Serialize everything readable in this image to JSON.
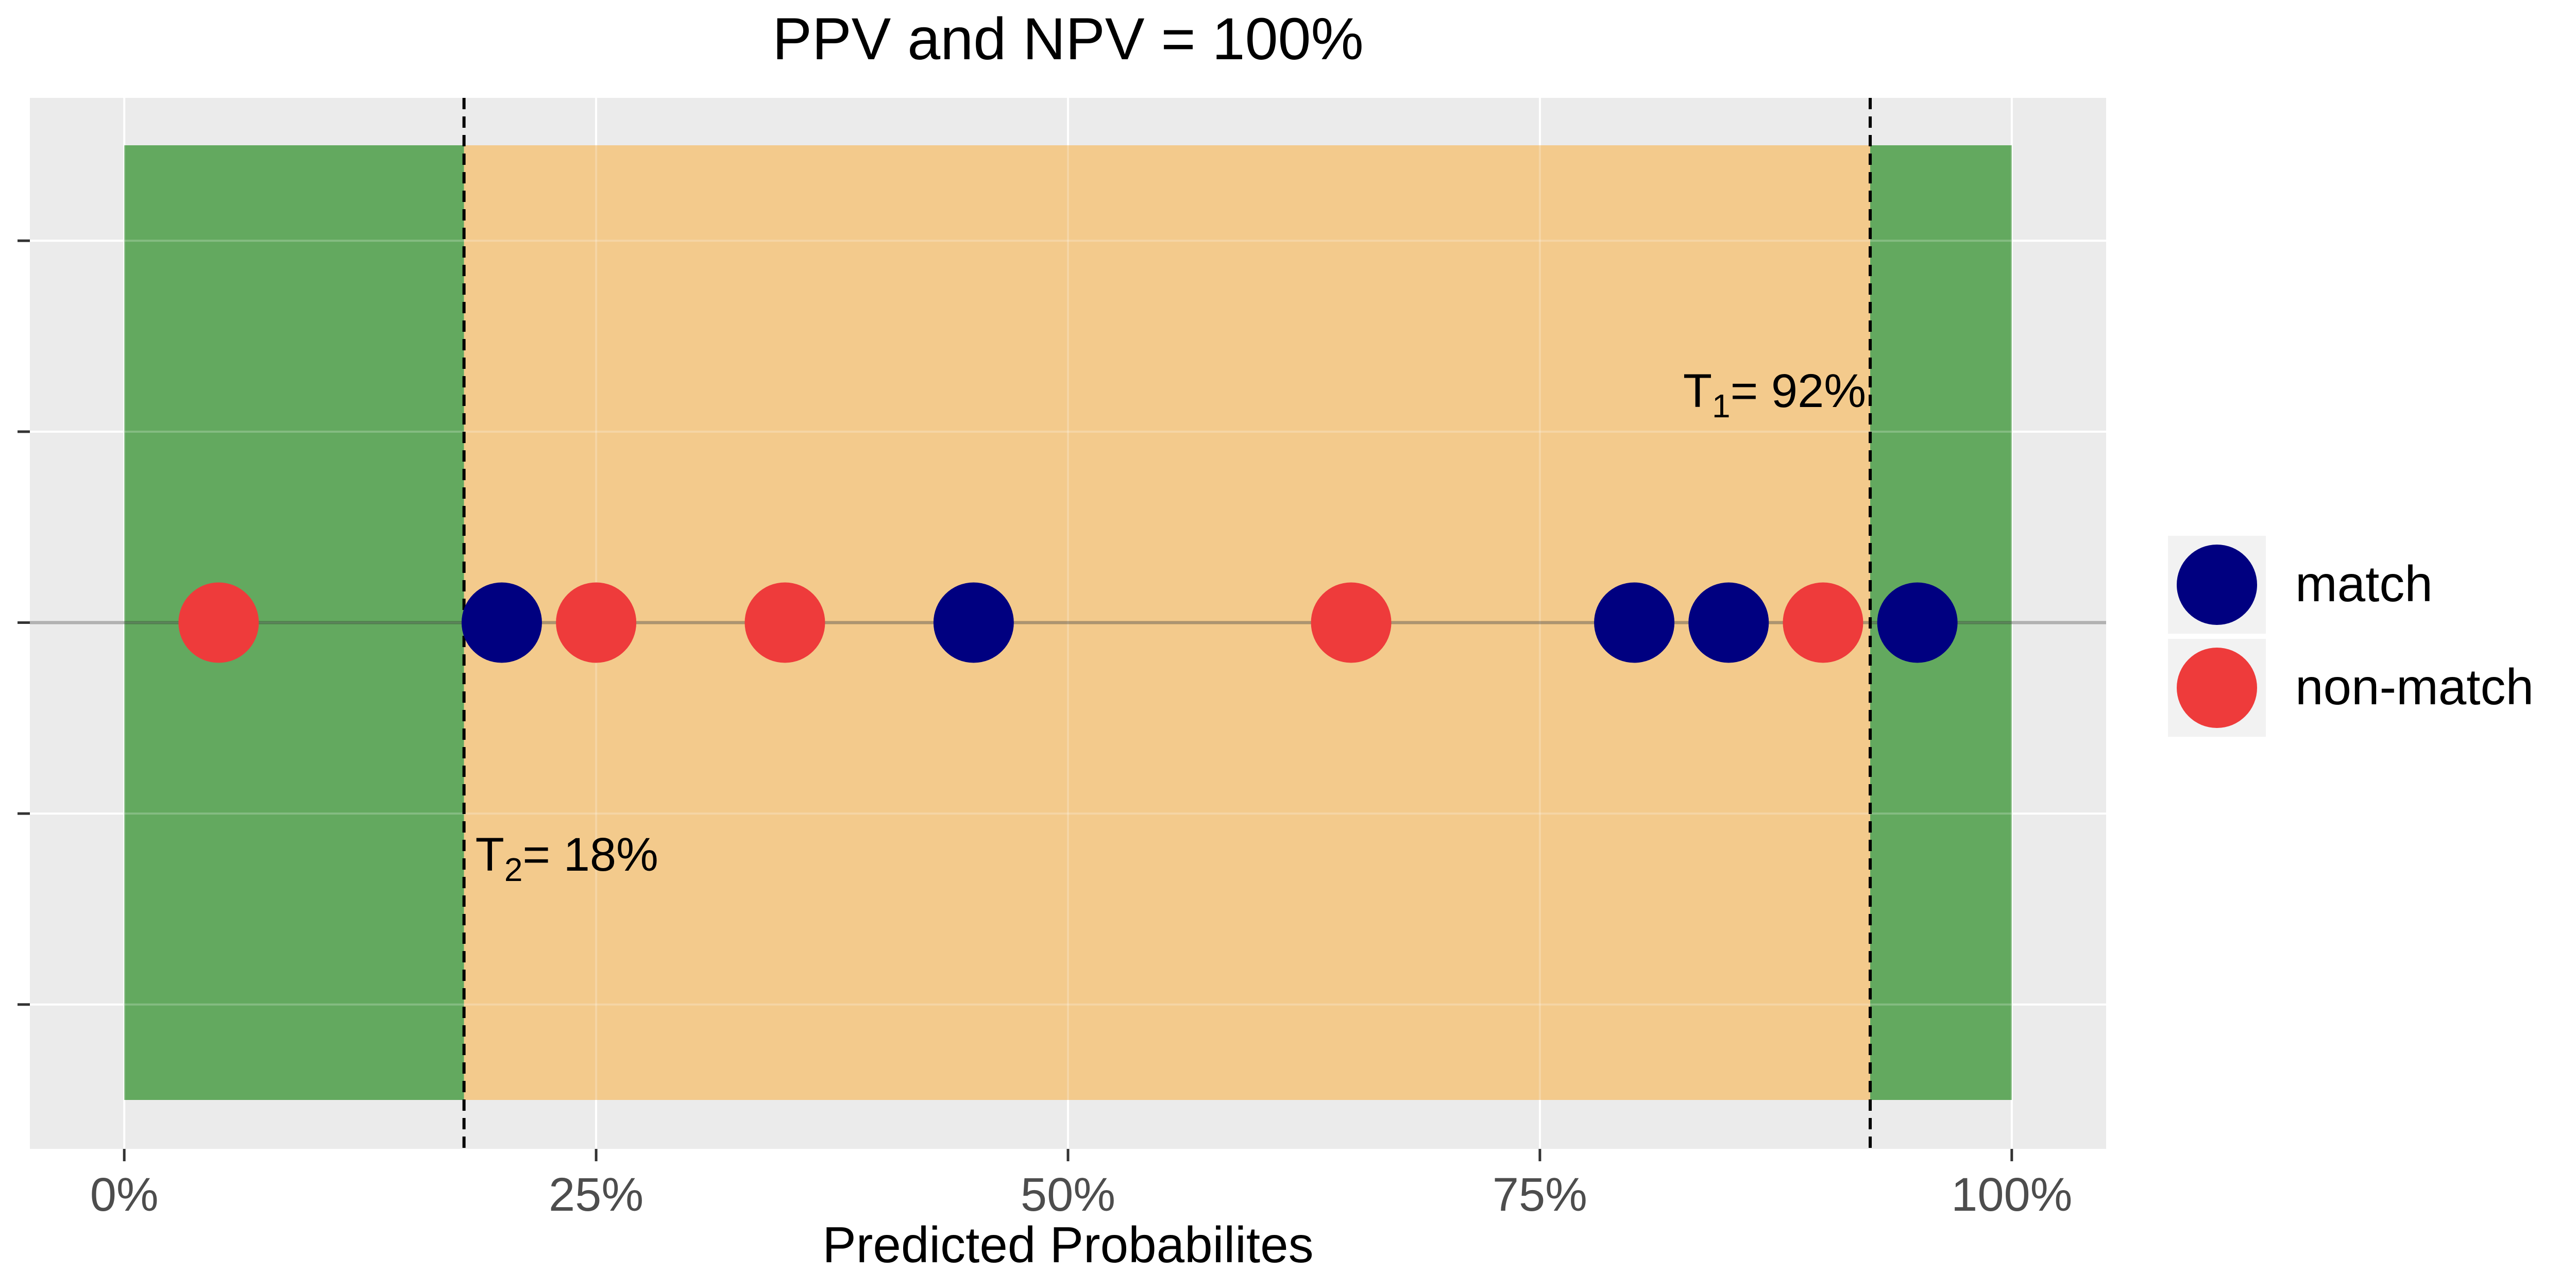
{
  "chart_data": {
    "type": "scatter",
    "title": "PPV and NPV = 100%",
    "xlabel": "Predicted Probabilites",
    "ylabel": "",
    "xlim": [
      -0.05,
      1.05
    ],
    "x_ticks": [
      0,
      0.25,
      0.5,
      0.75,
      1.0
    ],
    "x_tick_labels": [
      "0%",
      "25%",
      "50%",
      "75%",
      "100%"
    ],
    "y_ticks_count": 5,
    "grid": true,
    "legend_position": "right",
    "series": [
      {
        "name": "match",
        "color": "#000080",
        "x": [
          0.2,
          0.45,
          0.8,
          0.85,
          0.95
        ]
      },
      {
        "name": "non-match",
        "color": "#EE3B3B",
        "x": [
          0.05,
          0.25,
          0.35,
          0.65,
          0.9
        ]
      }
    ],
    "regions": [
      {
        "from": 0.0,
        "to": 0.18,
        "color": "#63A95F"
      },
      {
        "from": 0.18,
        "to": 0.925,
        "color": "#F3CA8C"
      },
      {
        "from": 0.925,
        "to": 1.0,
        "color": "#63A95F"
      }
    ],
    "thresholds": [
      {
        "x": 0.925,
        "label_main": "T",
        "label_sub": "1",
        "label_rest": "= 92%"
      },
      {
        "x": 0.18,
        "label_main": "T",
        "label_sub": "2",
        "label_rest": "= 18%"
      }
    ]
  },
  "colors": {
    "panel_bg": "#EBEBEB",
    "grid": "#FFFFFF",
    "tick_text": "#4D4D4D",
    "text": "#000000"
  }
}
